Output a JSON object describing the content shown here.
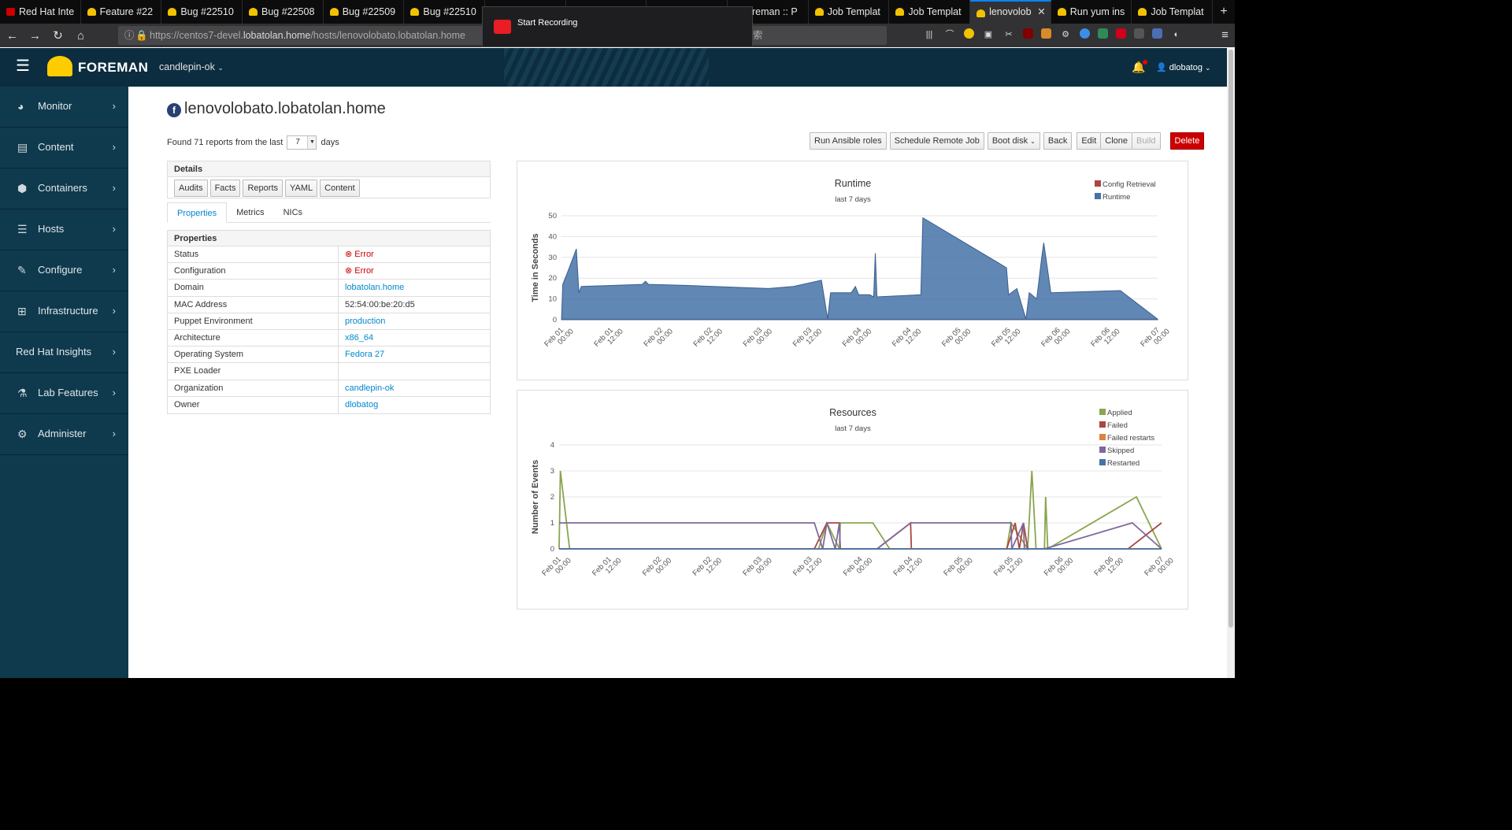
{
  "browser": {
    "tabs": [
      {
        "label": "Red Hat Inte",
        "type": "rh"
      },
      {
        "label": "Feature #22",
        "type": "bug"
      },
      {
        "label": "Bug #22510",
        "type": "bug"
      },
      {
        "label": "Bug #22508",
        "type": "bug"
      },
      {
        "label": "Bug #22509",
        "type": "bug"
      },
      {
        "label": "Bug #22510",
        "type": "bug"
      },
      {
        "label": "",
        "type": "hidden"
      },
      {
        "label": "",
        "type": "hidden"
      },
      {
        "label": "",
        "type": "hidden"
      },
      {
        "label": "oreman :: P",
        "type": "bug"
      },
      {
        "label": "Job Templat",
        "type": "bug"
      },
      {
        "label": "Job Templat",
        "type": "bug"
      },
      {
        "label": "lenovolob",
        "type": "active"
      },
      {
        "label": "Run yum ins",
        "type": "bug"
      },
      {
        "label": "Job Templat",
        "type": "bug"
      }
    ],
    "url_prefix": "https://centos7-devel.",
    "url_domain": "lobatolan.home",
    "url_path": "/hosts/lenovolobato.lobatolan.home",
    "url_suffix": "索",
    "recording_label": "Start Recording"
  },
  "header": {
    "brand": "FOREMAN",
    "organization": "candlepin-ok",
    "user": "dlobatog"
  },
  "sidebar": {
    "items": [
      {
        "label": "Monitor",
        "icon": "dashboard-icon",
        "glyph": "◕"
      },
      {
        "label": "Content",
        "icon": "book-icon",
        "glyph": "▤"
      },
      {
        "label": "Containers",
        "icon": "cube-icon",
        "glyph": "⬢"
      },
      {
        "label": "Hosts",
        "icon": "server-icon",
        "glyph": "☰"
      },
      {
        "label": "Configure",
        "icon": "wrench-icon",
        "glyph": "✎"
      },
      {
        "label": "Infrastructure",
        "icon": "network-icon",
        "glyph": "⊞"
      },
      {
        "label": "Red Hat Insights",
        "icon": "",
        "glyph": ""
      },
      {
        "label": "Lab Features",
        "icon": "flask-icon",
        "glyph": "⚗"
      },
      {
        "label": "Administer",
        "icon": "gear-icon",
        "glyph": "⚙"
      }
    ]
  },
  "page": {
    "host_name": "lenovolobato.lobatolan.home",
    "found_prefix": "Found 71 reports from the last",
    "days_value": "7",
    "found_suffix": "days",
    "actions": {
      "run_ansible": "Run Ansible roles",
      "schedule_job": "Schedule Remote Job",
      "boot_disk": "Boot disk",
      "back": "Back",
      "edit": "Edit",
      "clone": "Clone",
      "build": "Build",
      "delete": "Delete"
    },
    "details": {
      "title": "Details",
      "buttons": [
        "Audits",
        "Facts",
        "Reports",
        "YAML",
        "Content"
      ]
    },
    "tabs": [
      "Properties",
      "Metrics",
      "NICs"
    ],
    "properties": {
      "title": "Properties",
      "rows": [
        {
          "key": "Status",
          "value": "Error",
          "kind": "err"
        },
        {
          "key": "Configuration",
          "value": "Error",
          "kind": "err"
        },
        {
          "key": "Domain",
          "value": "lobatolan.home",
          "kind": "link"
        },
        {
          "key": "MAC Address",
          "value": "52:54:00:be:20:d5",
          "kind": "plain"
        },
        {
          "key": "Puppet Environment",
          "value": "production",
          "kind": "link"
        },
        {
          "key": "Architecture",
          "value": "x86_64",
          "kind": "link"
        },
        {
          "key": "Operating System",
          "value": "Fedora 27",
          "kind": "link"
        },
        {
          "key": "PXE Loader",
          "value": "",
          "kind": "plain"
        },
        {
          "key": "Organization",
          "value": "candlepin-ok",
          "kind": "link"
        },
        {
          "key": "Owner",
          "value": "dlobatog",
          "kind": "link"
        }
      ]
    }
  },
  "colors": {
    "accent": "#0088ce",
    "error": "#cc0000",
    "runtime": "#4572a7",
    "config": "#aa4643",
    "applied": "#89a54e",
    "failed": "#aa4643",
    "failed_restarts": "#db843d",
    "skipped": "#80699b",
    "restarted": "#4572a7"
  },
  "chart_data": [
    {
      "type": "area",
      "title": "Runtime",
      "subtitle": "last 7 days",
      "ylabel": "Time in Seconds",
      "ylim": [
        0,
        50
      ],
      "yticks": [
        0,
        10,
        20,
        30,
        40,
        50
      ],
      "xlim": [
        0,
        144
      ],
      "xticks": [
        {
          "x": 0,
          "label": [
            "Feb 01",
            "00:00"
          ]
        },
        {
          "x": 12,
          "label": [
            "Feb 01",
            "12:00"
          ]
        },
        {
          "x": 24,
          "label": [
            "Feb 02",
            "00:00"
          ]
        },
        {
          "x": 36,
          "label": [
            "Feb 02",
            "12:00"
          ]
        },
        {
          "x": 48,
          "label": [
            "Feb 03",
            "00:00"
          ]
        },
        {
          "x": 60,
          "label": [
            "Feb 03",
            "12:00"
          ]
        },
        {
          "x": 72,
          "label": [
            "Feb 04",
            "00:00"
          ]
        },
        {
          "x": 84,
          "label": [
            "Feb 04",
            "12:00"
          ]
        },
        {
          "x": 96,
          "label": [
            "Feb 05",
            "00:00"
          ]
        },
        {
          "x": 108,
          "label": [
            "Feb 05",
            "12:00"
          ]
        },
        {
          "x": 120,
          "label": [
            "Feb 06",
            "00:00"
          ]
        },
        {
          "x": 132,
          "label": [
            "Feb 06",
            "12:00"
          ]
        },
        {
          "x": 144,
          "label": [
            "Feb 07",
            "00:00"
          ]
        }
      ],
      "legend_position": "top-right",
      "series": [
        {
          "name": "Config Retrieval",
          "color": "#aa4643",
          "points": [
            [
              0,
              0.2
            ],
            [
              144,
              0.2
            ]
          ]
        },
        {
          "name": "Runtime",
          "color": "#4572a7",
          "points": [
            [
              0,
              0
            ],
            [
              0.3,
              17
            ],
            [
              1.5,
              23
            ],
            [
              3.6,
              34
            ],
            [
              4.2,
              13
            ],
            [
              4.8,
              16
            ],
            [
              19.5,
              17
            ],
            [
              20.3,
              18.5
            ],
            [
              21,
              17
            ],
            [
              30,
              16.5
            ],
            [
              50,
              15
            ],
            [
              56,
              16
            ],
            [
              62.8,
              19
            ],
            [
              64.3,
              0.4
            ],
            [
              65,
              13
            ],
            [
              70,
              13
            ],
            [
              71,
              16
            ],
            [
              71.8,
              12
            ],
            [
              74.5,
              12
            ],
            [
              75.4,
              11
            ],
            [
              75.8,
              32
            ],
            [
              76.2,
              11
            ],
            [
              86.8,
              12
            ],
            [
              87.3,
              49
            ],
            [
              107.5,
              25
            ],
            [
              108,
              12
            ],
            [
              110,
              15
            ],
            [
              112.2,
              0.3
            ],
            [
              113,
              13
            ],
            [
              114.8,
              10
            ],
            [
              116,
              30
            ],
            [
              116.5,
              37
            ],
            [
              117.3,
              26
            ],
            [
              118.2,
              13
            ],
            [
              135,
              14
            ],
            [
              144,
              0.3
            ],
            [
              144,
              0
            ]
          ]
        }
      ]
    },
    {
      "type": "line",
      "title": "Resources",
      "subtitle": "last 7 days",
      "ylabel": "Number of Events",
      "ylim": [
        0,
        4
      ],
      "yticks": [
        0,
        1,
        2,
        3,
        4
      ],
      "xlim": [
        0,
        144
      ],
      "xticks": [
        {
          "x": 0,
          "label": [
            "Feb 01",
            "00:00"
          ]
        },
        {
          "x": 12,
          "label": [
            "Feb 01",
            "12:00"
          ]
        },
        {
          "x": 24,
          "label": [
            "Feb 02",
            "00:00"
          ]
        },
        {
          "x": 36,
          "label": [
            "Feb 02",
            "12:00"
          ]
        },
        {
          "x": 48,
          "label": [
            "Feb 03",
            "00:00"
          ]
        },
        {
          "x": 60,
          "label": [
            "Feb 03",
            "12:00"
          ]
        },
        {
          "x": 72,
          "label": [
            "Feb 04",
            "00:00"
          ]
        },
        {
          "x": 84,
          "label": [
            "Feb 04",
            "12:00"
          ]
        },
        {
          "x": 96,
          "label": [
            "Feb 05",
            "00:00"
          ]
        },
        {
          "x": 108,
          "label": [
            "Feb 05",
            "12:00"
          ]
        },
        {
          "x": 120,
          "label": [
            "Feb 06",
            "00:00"
          ]
        },
        {
          "x": 132,
          "label": [
            "Feb 06",
            "12:00"
          ]
        },
        {
          "x": 144,
          "label": [
            "Feb 07",
            "00:00"
          ]
        }
      ],
      "legend_position": "top-right",
      "series": [
        {
          "name": "Applied",
          "color": "#89a54e",
          "points": [
            [
              0,
              0
            ],
            [
              0.3,
              3
            ],
            [
              2.5,
              0
            ],
            [
              62,
              0
            ],
            [
              64,
              1
            ],
            [
              67,
              0
            ],
            [
              67.2,
              1
            ],
            [
              75,
              1
            ],
            [
              79,
              0
            ],
            [
              107,
              0
            ],
            [
              108,
              1
            ],
            [
              112,
              0
            ],
            [
              113,
              3
            ],
            [
              114,
              0
            ],
            [
              116,
              0
            ],
            [
              116.3,
              2
            ],
            [
              116.8,
              0
            ],
            [
              138,
              2
            ],
            [
              144,
              0
            ]
          ]
        },
        {
          "name": "Failed",
          "color": "#aa4643",
          "points": [
            [
              0,
              0
            ],
            [
              61,
              0
            ],
            [
              64,
              1
            ],
            [
              67,
              1
            ],
            [
              67.2,
              0
            ],
            [
              76,
              0
            ],
            [
              84,
              1
            ],
            [
              84.2,
              0
            ],
            [
              107,
              0
            ],
            [
              109,
              1
            ],
            [
              110,
              0
            ],
            [
              111,
              1
            ],
            [
              112,
              0
            ],
            [
              136,
              0
            ],
            [
              144,
              1
            ]
          ]
        },
        {
          "name": "Failed restarts",
          "color": "#db843d",
          "points": [
            [
              0,
              0
            ],
            [
              144,
              0
            ]
          ]
        },
        {
          "name": "Skipped",
          "color": "#80699b",
          "points": [
            [
              0,
              1
            ],
            [
              61,
              1
            ],
            [
              63,
              0
            ],
            [
              64,
              1
            ],
            [
              66,
              0
            ],
            [
              67,
              1
            ],
            [
              67.2,
              0
            ],
            [
              76,
              0
            ],
            [
              84,
              1
            ],
            [
              108,
              1
            ],
            [
              108.2,
              0
            ],
            [
              111,
              1
            ],
            [
              111.2,
              0
            ],
            [
              116,
              0
            ],
            [
              137,
              1
            ],
            [
              144,
              0
            ]
          ]
        },
        {
          "name": "Restarted",
          "color": "#4572a7",
          "points": [
            [
              0,
              0
            ],
            [
              144,
              0
            ]
          ]
        }
      ]
    }
  ]
}
